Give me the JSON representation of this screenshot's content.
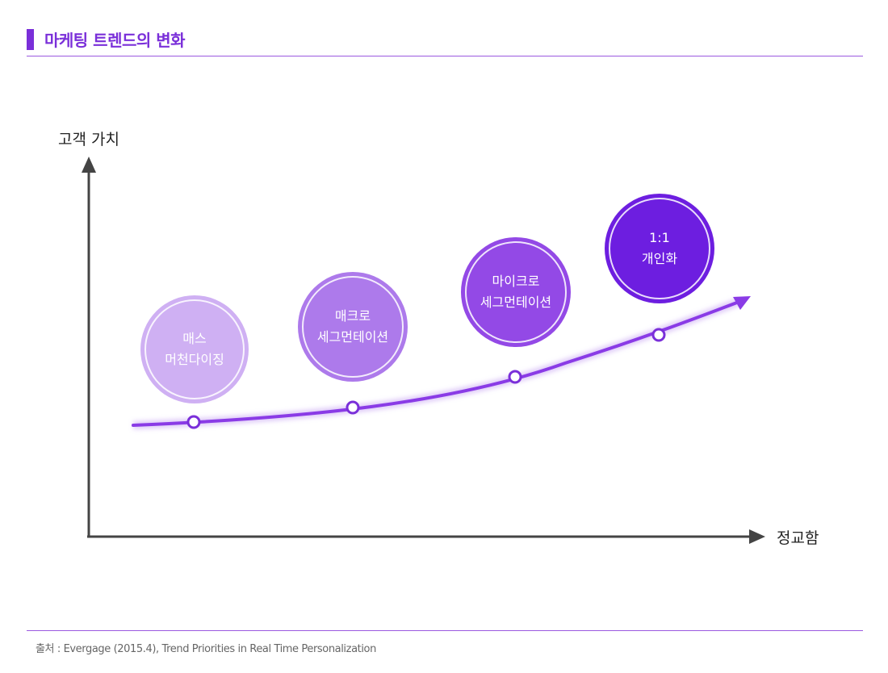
{
  "title": "마케팅 트렌드의 변화",
  "axes": {
    "y_label": "고객 가치",
    "x_label": "정교함"
  },
  "stages": [
    {
      "label": "매스\n머천다이징",
      "color": "#cfb0f3"
    },
    {
      "label": "매크로\n세그먼테이션",
      "color": "#ad7aeb"
    },
    {
      "label": "마이크로\n세그먼테이션",
      "color": "#9349e6"
    },
    {
      "label": "1:1\n개인화",
      "color": "#6d1ee0"
    }
  ],
  "colors": {
    "accent": "#7a2fd9",
    "curve": "#8a3be6",
    "axis": "#444444"
  },
  "source": "출처 : Evergage (2015.4), Trend Priorities in Real Time Personalization"
}
